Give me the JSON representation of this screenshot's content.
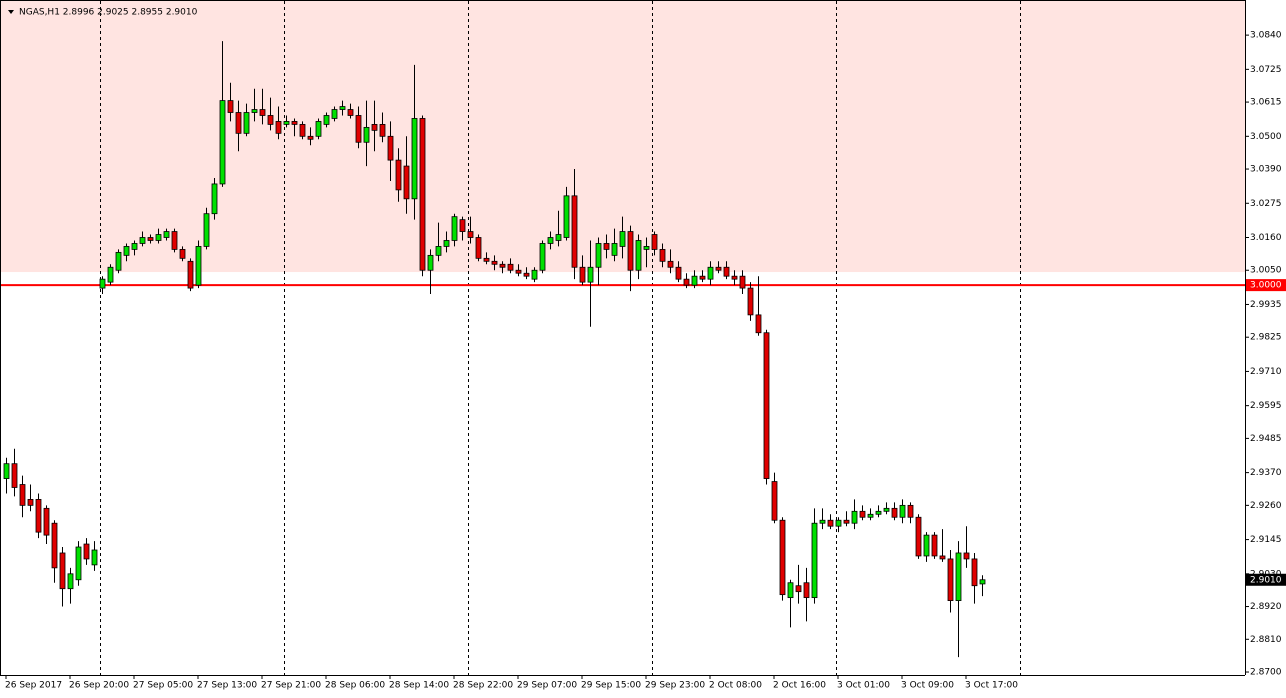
{
  "chart_data": {
    "type": "candlestick",
    "title": "NGAS,H1  2.8996 2.9025 2.8955 2.9010",
    "ylim": [
      2.869,
      3.0958
    ],
    "yticks": [
      {
        "value": 3.084,
        "label": "3.0840"
      },
      {
        "value": 3.0725,
        "label": "3.0725"
      },
      {
        "value": 3.0615,
        "label": "3.0615"
      },
      {
        "value": 3.05,
        "label": "3.0500"
      },
      {
        "value": 3.039,
        "label": "3.0390"
      },
      {
        "value": 3.0275,
        "label": "3.0275"
      },
      {
        "value": 3.016,
        "label": "3.0160"
      },
      {
        "value": 3.005,
        "label": "3.0050"
      },
      {
        "value": 2.9935,
        "label": "2.9935"
      },
      {
        "value": 2.9825,
        "label": "2.9825"
      },
      {
        "value": 2.971,
        "label": "2.9710"
      },
      {
        "value": 2.9595,
        "label": "2.9595"
      },
      {
        "value": 2.9485,
        "label": "2.9485"
      },
      {
        "value": 2.937,
        "label": "2.9370"
      },
      {
        "value": 2.926,
        "label": "2.9260"
      },
      {
        "value": 2.9145,
        "label": "2.9145"
      },
      {
        "value": 2.903,
        "label": "2.9030"
      },
      {
        "value": 2.892,
        "label": "2.8920"
      },
      {
        "value": 2.881,
        "label": "2.8810"
      },
      {
        "value": 2.87,
        "label": "2.8700"
      }
    ],
    "time_labels": [
      "26 Sep 2017",
      "26 Sep 20:00",
      "27 Sep 05:00",
      "27 Sep 13:00",
      "27 Sep 21:00",
      "28 Sep 06:00",
      "28 Sep 14:00",
      "28 Sep 22:00",
      "29 Sep 07:00",
      "29 Sep 15:00",
      "29 Sep 23:00",
      "2 Oct 08:00",
      "2 Oct 16:00",
      "3 Oct 01:00",
      "3 Oct 09:00",
      "3 Oct 17:00"
    ],
    "separators": [
      12,
      35,
      58,
      81,
      104,
      127
    ],
    "zone": [
      3.0044,
      3.0958
    ],
    "zone_color": "#ffe4e1",
    "level": {
      "value": 3.0,
      "label": "3.0000"
    },
    "level_color": "#ff0000",
    "last_price": {
      "value": 2.901,
      "label": "2.9010"
    },
    "bull_color": "#00e000",
    "bear_color": "#e00000",
    "ohlc": [
      [
        2.935,
        2.942,
        2.93,
        2.94
      ],
      [
        2.94,
        2.945,
        2.929,
        2.932
      ],
      [
        2.933,
        2.936,
        2.922,
        2.926
      ],
      [
        2.928,
        2.933,
        2.924,
        2.926
      ],
      [
        2.928,
        2.93,
        2.915,
        2.917
      ],
      [
        2.925,
        2.926,
        2.913,
        2.916
      ],
      [
        2.92,
        2.921,
        2.9,
        2.905
      ],
      [
        2.91,
        2.912,
        2.892,
        2.898
      ],
      [
        2.898,
        2.905,
        2.893,
        2.903
      ],
      [
        2.901,
        2.914,
        2.899,
        2.912
      ],
      [
        2.913,
        2.915,
        2.906,
        2.908
      ],
      [
        2.906,
        2.914,
        2.904,
        2.911
      ],
      [
        2.999,
        3.003,
        2.997,
        3.002
      ],
      [
        3.001,
        3.007,
        3.0,
        3.006
      ],
      [
        3.005,
        3.012,
        3.004,
        3.011
      ],
      [
        3.01,
        3.014,
        3.008,
        3.013
      ],
      [
        3.012,
        3.015,
        3.01,
        3.014
      ],
      [
        3.014,
        3.018,
        3.013,
        3.016
      ],
      [
        3.016,
        3.017,
        3.014,
        3.015
      ],
      [
        3.015,
        3.019,
        3.014,
        3.017
      ],
      [
        3.016,
        3.019,
        3.015,
        3.018
      ],
      [
        3.018,
        3.019,
        3.011,
        3.012
      ],
      [
        3.012,
        3.013,
        3.008,
        3.009
      ],
      [
        3.008,
        3.009,
        2.998,
        2.999
      ],
      [
        3.0,
        3.015,
        2.999,
        3.013
      ],
      [
        3.013,
        3.026,
        3.012,
        3.024
      ],
      [
        3.024,
        3.036,
        3.022,
        3.034
      ],
      [
        3.034,
        3.082,
        3.033,
        3.062
      ],
      [
        3.062,
        3.068,
        3.055,
        3.058
      ],
      [
        3.058,
        3.062,
        3.045,
        3.051
      ],
      [
        3.051,
        3.061,
        3.05,
        3.058
      ],
      [
        3.058,
        3.066,
        3.055,
        3.059
      ],
      [
        3.059,
        3.066,
        3.054,
        3.057
      ],
      [
        3.057,
        3.063,
        3.052,
        3.054
      ],
      [
        3.055,
        3.06,
        3.049,
        3.051
      ],
      [
        3.054,
        3.057,
        3.053,
        3.055
      ],
      [
        3.055,
        3.056,
        3.05,
        3.054
      ],
      [
        3.054,
        3.055,
        3.049,
        3.05
      ],
      [
        3.05,
        3.053,
        3.047,
        3.049
      ],
      [
        3.05,
        3.056,
        3.049,
        3.055
      ],
      [
        3.054,
        3.058,
        3.053,
        3.057
      ],
      [
        3.056,
        3.06,
        3.055,
        3.059
      ],
      [
        3.059,
        3.062,
        3.057,
        3.06
      ],
      [
        3.059,
        3.061,
        3.056,
        3.057
      ],
      [
        3.057,
        3.06,
        3.046,
        3.048
      ],
      [
        3.048,
        3.062,
        3.04,
        3.053
      ],
      [
        3.054,
        3.062,
        3.045,
        3.052
      ],
      [
        3.054,
        3.058,
        3.048,
        3.05
      ],
      [
        3.05,
        3.055,
        3.035,
        3.042
      ],
      [
        3.042,
        3.046,
        3.028,
        3.032
      ],
      [
        3.04,
        3.05,
        3.024,
        3.029
      ],
      [
        3.029,
        3.074,
        3.022,
        3.056
      ],
      [
        3.056,
        3.057,
        3.003,
        3.005
      ],
      [
        3.005,
        3.012,
        2.997,
        3.01
      ],
      [
        3.01,
        3.021,
        3.008,
        3.013
      ],
      [
        3.013,
        3.018,
        3.011,
        3.015
      ],
      [
        3.015,
        3.024,
        3.013,
        3.023
      ],
      [
        3.022,
        3.023,
        3.015,
        3.018
      ],
      [
        3.018,
        3.023,
        3.014,
        3.016
      ],
      [
        3.016,
        3.017,
        3.008,
        3.009
      ],
      [
        3.009,
        3.011,
        3.007,
        3.008
      ],
      [
        3.008,
        3.01,
        3.005,
        3.007
      ],
      [
        3.007,
        3.008,
        3.004,
        3.006
      ],
      [
        3.007,
        3.009,
        3.004,
        3.005
      ],
      [
        3.005,
        3.007,
        3.003,
        3.004
      ],
      [
        3.004,
        3.006,
        3.002,
        3.003
      ],
      [
        3.002,
        3.006,
        3.001,
        3.005
      ],
      [
        3.005,
        3.015,
        3.004,
        3.014
      ],
      [
        3.014,
        3.018,
        3.012,
        3.016
      ],
      [
        3.015,
        3.025,
        3.013,
        3.017
      ],
      [
        3.016,
        3.033,
        3.015,
        3.03
      ],
      [
        3.03,
        3.039,
        3.002,
        3.006
      ],
      [
        3.006,
        3.01,
        3.0,
        3.001
      ],
      [
        3.001,
        3.015,
        2.986,
        3.006
      ],
      [
        3.006,
        3.016,
        3.0,
        3.014
      ],
      [
        3.014,
        3.017,
        3.009,
        3.012
      ],
      [
        3.01,
        3.019,
        3.008,
        3.014
      ],
      [
        3.013,
        3.023,
        3.009,
        3.018
      ],
      [
        3.018,
        3.02,
        2.998,
        3.005
      ],
      [
        3.005,
        3.017,
        3.002,
        3.015
      ],
      [
        3.012,
        3.016,
        3.006,
        3.013
      ],
      [
        3.017,
        3.018,
        3.01,
        3.012
      ],
      [
        3.012,
        3.014,
        3.006,
        3.008
      ],
      [
        3.008,
        3.012,
        3.004,
        3.006
      ],
      [
        3.006,
        3.008,
        3.001,
        3.002
      ],
      [
        3.002,
        3.004,
        2.999,
        3.0
      ],
      [
        3.0,
        3.005,
        2.999,
        3.003
      ],
      [
        3.003,
        3.005,
        3.001,
        3.002
      ],
      [
        3.002,
        3.008,
        3.0,
        3.006
      ],
      [
        3.006,
        3.008,
        3.004,
        3.005
      ],
      [
        3.006,
        3.008,
        3.002,
        3.003
      ],
      [
        3.003,
        3.005,
        3.0,
        3.002
      ],
      [
        3.003,
        3.005,
        2.997,
        2.999
      ],
      [
        2.999,
        3.001,
        2.988,
        2.99
      ],
      [
        2.99,
        3.003,
        2.983,
        2.984
      ],
      [
        2.984,
        2.985,
        2.933,
        2.935
      ],
      [
        2.934,
        2.937,
        2.92,
        2.921
      ],
      [
        2.921,
        2.922,
        2.894,
        2.896
      ],
      [
        2.895,
        2.901,
        2.885,
        2.9
      ],
      [
        2.899,
        2.906,
        2.893,
        2.897
      ],
      [
        2.9,
        2.905,
        2.887,
        2.895
      ],
      [
        2.895,
        2.925,
        2.893,
        2.92
      ],
      [
        2.92,
        2.925,
        2.918,
        2.921
      ],
      [
        2.921,
        2.923,
        2.918,
        2.919
      ],
      [
        2.919,
        2.922,
        2.917,
        2.921
      ],
      [
        2.921,
        2.924,
        2.919,
        2.92
      ],
      [
        2.92,
        2.928,
        2.918,
        2.924
      ],
      [
        2.924,
        2.926,
        2.921,
        2.922
      ],
      [
        2.922,
        2.925,
        2.921,
        2.923
      ],
      [
        2.923,
        2.926,
        2.922,
        2.924
      ],
      [
        2.924,
        2.927,
        2.923,
        2.925
      ],
      [
        2.925,
        2.927,
        2.921,
        2.922
      ],
      [
        2.922,
        2.928,
        2.92,
        2.926
      ],
      [
        2.926,
        2.927,
        2.92,
        2.922
      ],
      [
        2.922,
        2.923,
        2.908,
        2.909
      ],
      [
        2.909,
        2.917,
        2.907,
        2.916
      ],
      [
        2.916,
        2.917,
        2.908,
        2.909
      ],
      [
        2.909,
        2.918,
        2.907,
        2.908
      ],
      [
        2.908,
        2.911,
        2.89,
        2.894
      ],
      [
        2.894,
        2.914,
        2.875,
        2.91
      ],
      [
        2.91,
        2.919,
        2.905,
        2.908
      ],
      [
        2.908,
        2.91,
        2.893,
        2.899
      ],
      [
        2.8996,
        2.9025,
        2.8955,
        2.901
      ]
    ]
  }
}
